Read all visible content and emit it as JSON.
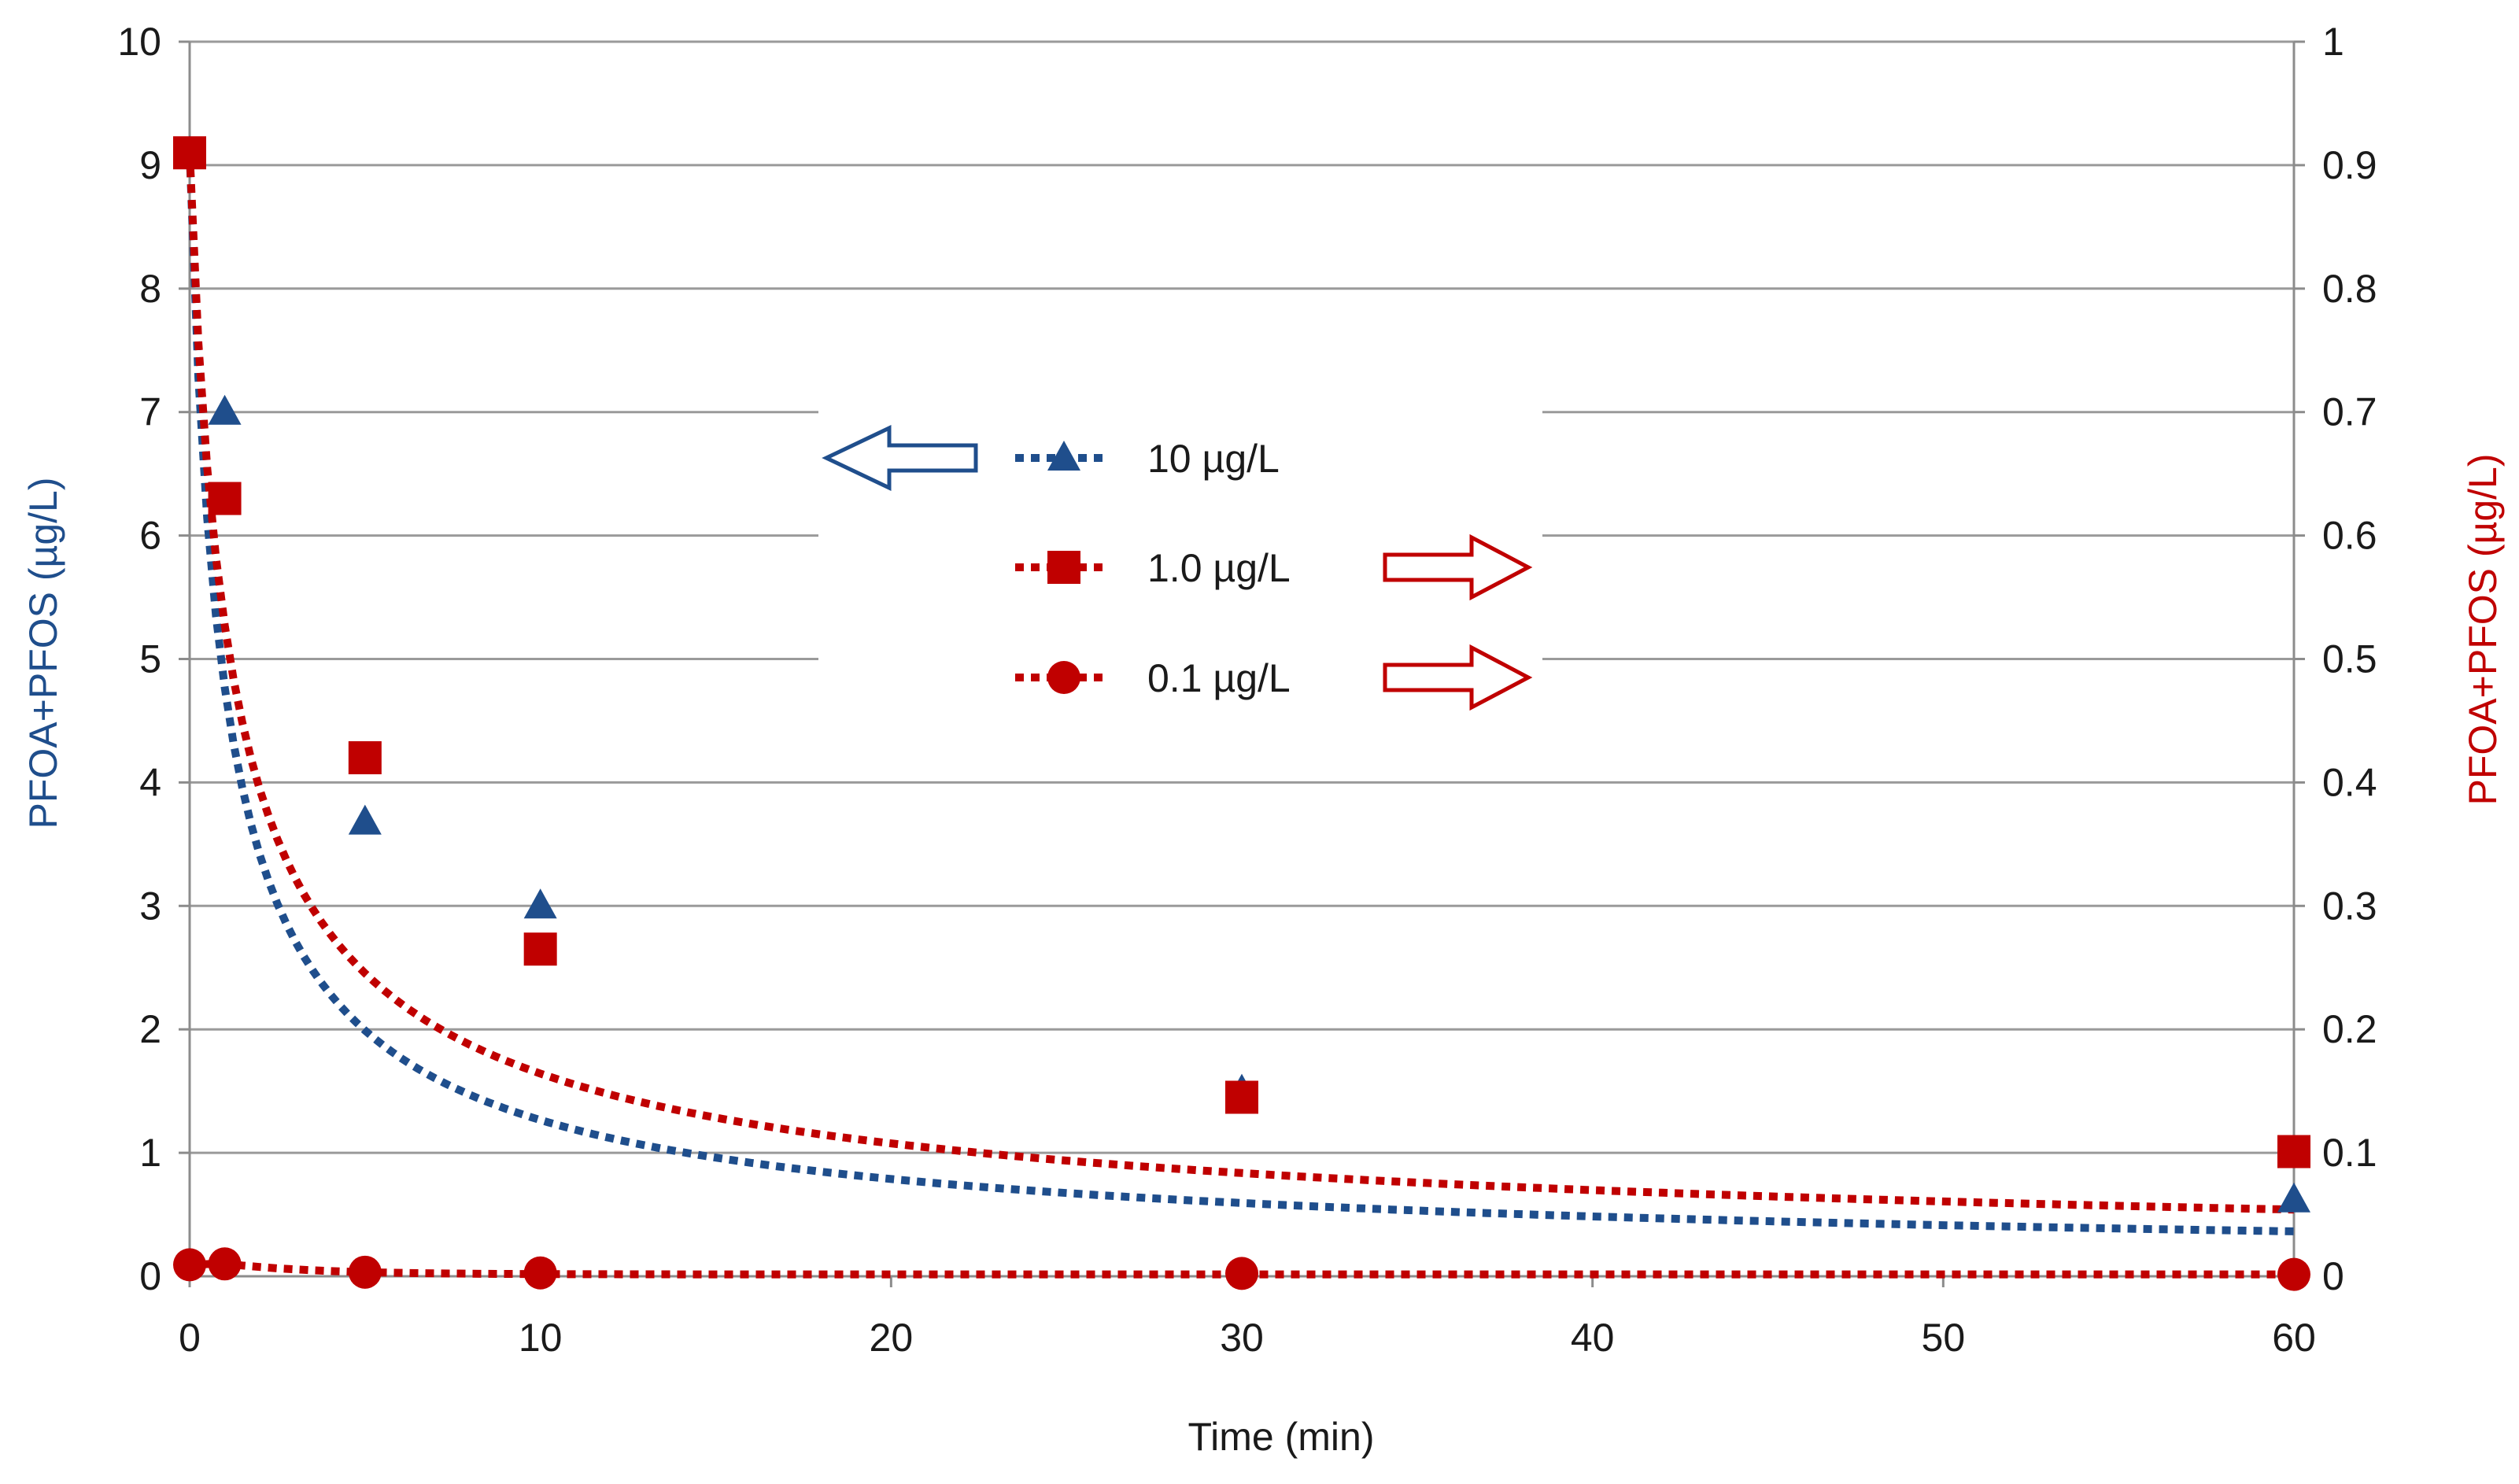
{
  "chart_data": {
    "type": "scatter",
    "title": "",
    "xlabel": "Time (min)",
    "ylabel_left": "PFOA+PFOS (µg/L)",
    "ylabel_right": "PFOA+PFOS (µg/L)",
    "xlim": [
      0,
      60
    ],
    "ylim_left": [
      0,
      10
    ],
    "ylim_right": [
      0,
      1
    ],
    "x_ticks": [
      "0",
      "10",
      "20",
      "30",
      "40",
      "50",
      "60"
    ],
    "y_left_ticks": [
      "0",
      "1",
      "2",
      "3",
      "4",
      "5",
      "6",
      "7",
      "8",
      "9",
      "10"
    ],
    "y_right_ticks": [
      "0",
      "0.1",
      "0.2",
      "0.3",
      "0.4",
      "0.5",
      "0.6",
      "0.7",
      "0.8",
      "0.9",
      "1"
    ],
    "grid": true,
    "colors": {
      "blue": "#1f4e8c",
      "red": "#c00000",
      "grid": "#9a9a9a",
      "axis": "#8c8c8c"
    },
    "series": [
      {
        "name": "10  µg/L",
        "axis": "left",
        "marker": "triangle",
        "color": "#1f4e8c",
        "x": [
          0,
          1,
          5,
          10,
          30,
          60
        ],
        "y": [
          9.1,
          7.0,
          3.68,
          3.0,
          1.5,
          0.62
        ],
        "trendline": {
          "type": "power-like",
          "a": 9.1,
          "b": 1.46,
          "c": 0.718
        }
      },
      {
        "name": "1.0  µg/L",
        "axis": "right",
        "marker": "square",
        "color": "#c00000",
        "x": [
          0,
          1,
          5,
          10,
          30,
          60
        ],
        "y": [
          0.91,
          0.63,
          0.42,
          0.265,
          0.145,
          0.101
        ],
        "trendline": {
          "type": "power-like",
          "a": 0.91,
          "b": 1.34,
          "c": 0.642
        }
      },
      {
        "name": "0.1  µg/L",
        "axis": "right",
        "marker": "circle",
        "color": "#c00000",
        "x": [
          0,
          1,
          5,
          10,
          30,
          60
        ],
        "y": [
          0.0093,
          0.01,
          0.0033,
          0.0027,
          0.0023,
          0.0015
        ],
        "trendline": {
          "type": "decay",
          "a": 0.0104,
          "b": 1.98,
          "c": 1.05,
          "points_t": [
            0,
            1
          ],
          "points_y": [
            0.0092,
            0.0105
          ]
        }
      }
    ],
    "legend": {
      "position": "center",
      "entries": [
        "10  µg/L",
        "1.0  µg/L",
        "0.1  µg/L"
      ],
      "axis_arrows": [
        "left",
        "right",
        "right"
      ]
    }
  }
}
